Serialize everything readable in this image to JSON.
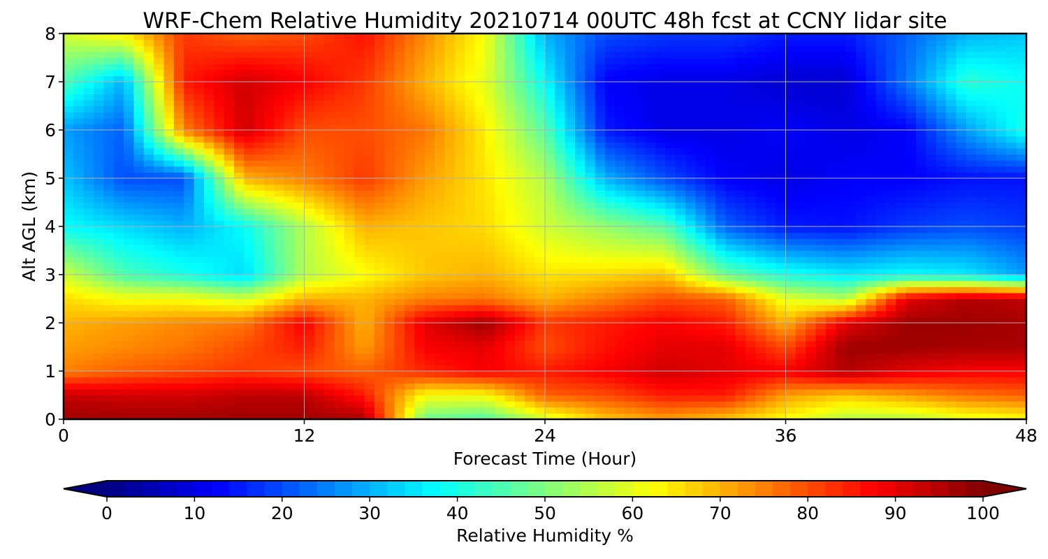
{
  "chart_data": {
    "type": "heatmap",
    "title": "WRF-Chem Relative Humidity 20210714 00UTC 48h fcst at CCNY lidar site",
    "xlabel": "Forecast Time (Hour)",
    "ylabel": "Alt AGL (km)",
    "xlim": [
      0,
      48
    ],
    "ylim": [
      0,
      8
    ],
    "xticks": [
      "0",
      "12",
      "24",
      "36",
      "48"
    ],
    "yticks": [
      "0",
      "1",
      "2",
      "3",
      "4",
      "5",
      "6",
      "7",
      "8"
    ],
    "grid": true,
    "colormap": "jet",
    "colorbar": {
      "label": "Relative Humidity %",
      "ticks": [
        "0",
        "10",
        "20",
        "30",
        "40",
        "50",
        "60",
        "70",
        "80",
        "90",
        "100"
      ],
      "range": [
        0,
        100
      ],
      "extend": "both",
      "orientation": "horizontal"
    },
    "x": [
      0,
      3,
      6,
      9,
      12,
      15,
      18,
      21,
      24,
      27,
      30,
      33,
      36,
      39,
      42,
      45,
      48
    ],
    "y": [
      0,
      0.5,
      1,
      1.5,
      2,
      2.5,
      3,
      4,
      5,
      6,
      7,
      8
    ],
    "z": [
      [
        97,
        97,
        97,
        97,
        97,
        96,
        48,
        45,
        58,
        68,
        72,
        68,
        62,
        55,
        55,
        60,
        62
      ],
      [
        93,
        92,
        92,
        94,
        94,
        85,
        62,
        62,
        78,
        80,
        85,
        85,
        72,
        68,
        72,
        76,
        78
      ],
      [
        75,
        78,
        80,
        82,
        80,
        78,
        84,
        88,
        85,
        88,
        92,
        90,
        88,
        95,
        90,
        88,
        88
      ],
      [
        72,
        74,
        76,
        80,
        85,
        72,
        88,
        90,
        80,
        86,
        90,
        90,
        80,
        97,
        97,
        96,
        96
      ],
      [
        70,
        72,
        74,
        76,
        88,
        70,
        90,
        97,
        82,
        85,
        88,
        85,
        70,
        90,
        97,
        97,
        96
      ],
      [
        66,
        62,
        62,
        58,
        70,
        70,
        75,
        76,
        70,
        75,
        80,
        78,
        60,
        55,
        90,
        95,
        94
      ],
      [
        58,
        45,
        40,
        34,
        55,
        62,
        68,
        70,
        65,
        66,
        68,
        48,
        40,
        36,
        38,
        36,
        28
      ],
      [
        38,
        34,
        30,
        38,
        55,
        70,
        68,
        66,
        58,
        52,
        46,
        22,
        15,
        14,
        18,
        20,
        18
      ],
      [
        32,
        20,
        20,
        70,
        75,
        82,
        72,
        65,
        55,
        30,
        20,
        12,
        10,
        12,
        12,
        14,
        14
      ],
      [
        28,
        22,
        75,
        92,
        80,
        80,
        76,
        64,
        46,
        15,
        10,
        10,
        12,
        10,
        12,
        28,
        40
      ],
      [
        45,
        30,
        85,
        92,
        88,
        82,
        70,
        60,
        38,
        12,
        10,
        10,
        8,
        8,
        24,
        42,
        38
      ],
      [
        58,
        64,
        82,
        78,
        80,
        86,
        74,
        62,
        30,
        20,
        18,
        18,
        15,
        15,
        22,
        30,
        32
      ]
    ]
  }
}
